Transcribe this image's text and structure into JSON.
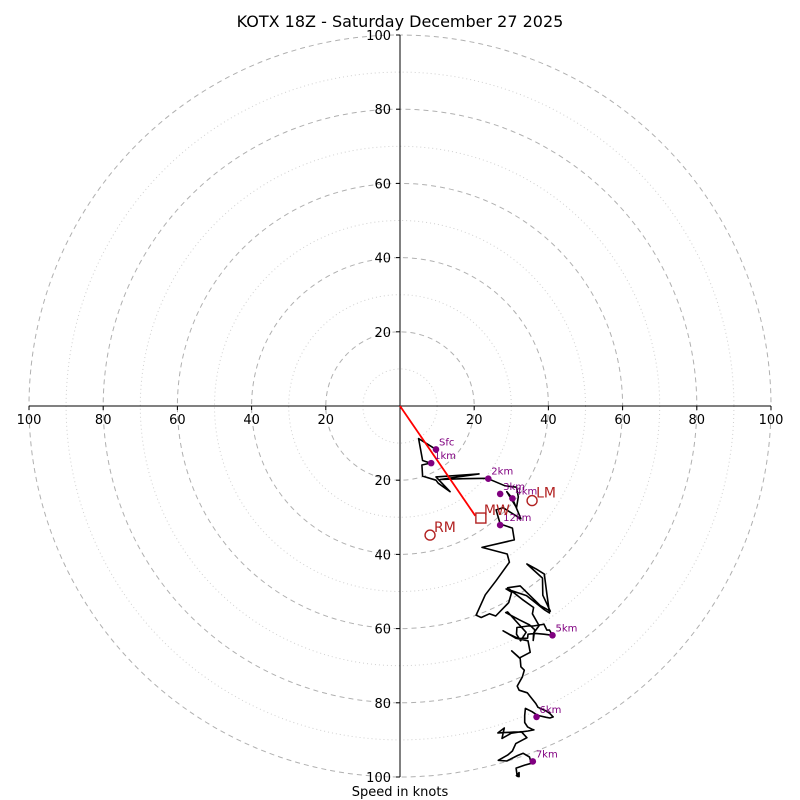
{
  "chart_data": {
    "type": "hodograph",
    "title": "KOTX 18Z - Saturday December 27 2025",
    "xlabel": "Speed in knots",
    "xlim": [
      -100,
      100
    ],
    "ylim": [
      -100,
      100
    ],
    "rings_major": [
      20,
      40,
      60,
      80,
      100
    ],
    "rings_minor": [
      10,
      30,
      50,
      70,
      90
    ],
    "x_ticks": [
      {
        "value": -100,
        "label": "100"
      },
      {
        "value": -80,
        "label": "80"
      },
      {
        "value": -60,
        "label": "60"
      },
      {
        "value": -40,
        "label": "40"
      },
      {
        "value": -20,
        "label": "20"
      },
      {
        "value": 20,
        "label": "20"
      },
      {
        "value": 40,
        "label": "40"
      },
      {
        "value": 60,
        "label": "60"
      },
      {
        "value": 80,
        "label": "80"
      },
      {
        "value": 100,
        "label": "100"
      }
    ],
    "y_ticks": [
      {
        "value": 100,
        "label": "100"
      },
      {
        "value": 80,
        "label": "80"
      },
      {
        "value": 60,
        "label": "60"
      },
      {
        "value": 40,
        "label": "40"
      },
      {
        "value": 20,
        "label": "20"
      },
      {
        "value": -20,
        "label": "20"
      },
      {
        "value": -40,
        "label": "40"
      },
      {
        "value": -60,
        "label": "60"
      },
      {
        "value": -80,
        "label": "80"
      },
      {
        "value": -100,
        "label": "100"
      }
    ],
    "trace": [
      [
        9.7,
        -11.7
      ],
      [
        5.0,
        -8.8
      ],
      [
        6.1,
        -14.7
      ],
      [
        8.2,
        -15.4
      ],
      [
        5.9,
        -15.9
      ],
      [
        6.1,
        -18.9
      ],
      [
        9.7,
        -20.0
      ],
      [
        10.3,
        -20.8
      ],
      [
        13.5,
        -23.1
      ],
      [
        9.7,
        -19.1
      ],
      [
        21.3,
        -18.3
      ],
      [
        10.8,
        -19.8
      ],
      [
        17.0,
        -19.6
      ],
      [
        23.5,
        -19.5
      ],
      [
        28.3,
        -21.5
      ],
      [
        31.4,
        -21.9
      ],
      [
        31.9,
        -24.5
      ],
      [
        31.4,
        -27.4
      ],
      [
        28.8,
        -23.1
      ],
      [
        30.3,
        -24.9
      ],
      [
        32.6,
        -30.4
      ],
      [
        27.8,
        -27.4
      ],
      [
        25.9,
        -28.0
      ],
      [
        27.0,
        -31.8
      ],
      [
        30.3,
        -32.9
      ],
      [
        30.8,
        -36.1
      ],
      [
        22.1,
        -38.1
      ],
      [
        28.9,
        -39.9
      ],
      [
        29.5,
        -42.1
      ],
      [
        25.9,
        -47.1
      ],
      [
        23.0,
        -50.9
      ],
      [
        20.5,
        -56.4
      ],
      [
        21.9,
        -57.0
      ],
      [
        24.1,
        -56.0
      ],
      [
        25.8,
        -56.6
      ],
      [
        29.3,
        -53.0
      ],
      [
        30.1,
        -50.2
      ],
      [
        28.6,
        -49.3
      ],
      [
        34.1,
        -51.1
      ],
      [
        39.0,
        -55.0
      ],
      [
        40.3,
        -55.8
      ],
      [
        39.6,
        -50.7
      ],
      [
        38.9,
        -45.3
      ],
      [
        36.8,
        -44.0
      ],
      [
        34.2,
        -42.6
      ],
      [
        38.4,
        -46.4
      ],
      [
        38.5,
        -51.0
      ],
      [
        40.5,
        -55.3
      ],
      [
        37.8,
        -53.8
      ],
      [
        32.4,
        -48.5
      ],
      [
        29.0,
        -49.0
      ],
      [
        32.9,
        -52.1
      ],
      [
        36.0,
        -54.3
      ],
      [
        35.7,
        -56.0
      ],
      [
        37.5,
        -59.2
      ],
      [
        36.0,
        -61.2
      ],
      [
        35.9,
        -63.2
      ],
      [
        36.3,
        -60.3
      ],
      [
        34.9,
        -59.0
      ],
      [
        32.1,
        -57.6
      ],
      [
        28.5,
        -55.7
      ],
      [
        29.0,
        -55.5
      ],
      [
        34.0,
        -61.0
      ],
      [
        32.5,
        -63.3
      ],
      [
        31.4,
        -61.5
      ],
      [
        31.5,
        -59.7
      ],
      [
        34.5,
        -59.3
      ],
      [
        35.9,
        -59.3
      ],
      [
        38.4,
        -58.9
      ],
      [
        38.8,
        -58.8
      ],
      [
        39.6,
        -60.4
      ],
      [
        40.3,
        -60.4
      ],
      [
        41.1,
        -61.8
      ],
      [
        38.8,
        -61.5
      ],
      [
        36.5,
        -61.3
      ],
      [
        34.5,
        -61.5
      ],
      [
        34.4,
        -62.6
      ],
      [
        32.0,
        -62.7
      ],
      [
        29.8,
        -61.7
      ],
      [
        27.8,
        -60.6
      ],
      [
        31.2,
        -62.6
      ],
      [
        34.5,
        -63.3
      ],
      [
        35.1,
        -66.4
      ],
      [
        32.2,
        -67.9
      ],
      [
        31.7,
        -67.4
      ],
      [
        30.1,
        -66.0
      ],
      [
        32.4,
        -68.1
      ],
      [
        32.6,
        -70.3
      ],
      [
        33.5,
        -71.2
      ],
      [
        33.0,
        -73.0
      ],
      [
        31.6,
        -75.5
      ],
      [
        32.1,
        -76.6
      ],
      [
        34.3,
        -77.3
      ],
      [
        35.1,
        -78.3
      ],
      [
        36.6,
        -80.2
      ],
      [
        37.2,
        -81.2
      ],
      [
        39.4,
        -82.2
      ],
      [
        40.3,
        -82.8
      ],
      [
        41.3,
        -83.8
      ],
      [
        40.4,
        -84.1
      ],
      [
        39.4,
        -83.9
      ],
      [
        37.1,
        -83.4
      ],
      [
        35.6,
        -82.4
      ],
      [
        33.8,
        -81.5
      ],
      [
        33.6,
        -83.4
      ],
      [
        33.6,
        -85.3
      ],
      [
        34.4,
        -86.5
      ],
      [
        35.5,
        -87.1
      ],
      [
        36.1,
        -87.3
      ],
      [
        34.5,
        -87.6
      ],
      [
        32.4,
        -87.9
      ],
      [
        30.7,
        -87.9
      ],
      [
        26.4,
        -88.1
      ],
      [
        28.1,
        -86.8
      ],
      [
        27.5,
        -89.6
      ],
      [
        30.0,
        -88.2
      ],
      [
        32.7,
        -87.8
      ],
      [
        34.2,
        -89.4
      ],
      [
        31.2,
        -91.0
      ],
      [
        30.3,
        -93.0
      ],
      [
        29.0,
        -94.1
      ],
      [
        26.5,
        -95.5
      ],
      [
        28.8,
        -95.7
      ],
      [
        31.7,
        -94.2
      ],
      [
        33.2,
        -93.6
      ],
      [
        34.9,
        -94.6
      ],
      [
        35.4,
        -96.3
      ],
      [
        33.6,
        -96.8
      ],
      [
        31.3,
        -97.6
      ],
      [
        31.6,
        -99.8
      ],
      [
        32.0,
        -99.6
      ],
      [
        32.0,
        -99.9
      ],
      [
        31.4,
        -99.6
      ],
      [
        31.7,
        -99.8
      ],
      [
        32.1,
        -99.9
      ],
      [
        32.1,
        -98.8
      ],
      [
        31.3,
        -99.8
      ]
    ],
    "height_markers": [
      {
        "label": "Sfc",
        "u": 9.7,
        "v": -11.7
      },
      {
        "label": "1km",
        "u": 8.4,
        "v": -15.4
      },
      {
        "label": "2km",
        "u": 23.8,
        "v": -19.6
      },
      {
        "label": "3km",
        "u": 27.0,
        "v": -23.7
      },
      {
        "label": "4km",
        "u": 30.3,
        "v": -24.9
      },
      {
        "label": "12km",
        "u": 27.0,
        "v": -32.1
      },
      {
        "label": "5km",
        "u": 41.1,
        "v": -61.8
      },
      {
        "label": "6km",
        "u": 36.8,
        "v": -83.8
      },
      {
        "label": "7km",
        "u": 35.8,
        "v": -95.8
      }
    ],
    "mean_wind": {
      "label": "MW",
      "u": 21.8,
      "v": -30.2
    },
    "bunkers_lm": {
      "label": "LM",
      "u": 35.6,
      "v": -25.5
    },
    "bunkers_rm": {
      "label": "RM",
      "u": 8.1,
      "v": -34.8
    },
    "shear_vector": {
      "from": [
        0,
        0
      ],
      "to": [
        20.3,
        -29.6
      ]
    },
    "colors": {
      "trace": "#000000",
      "markers": "#800080",
      "motion": "#b22222",
      "shear": "#ff0000",
      "grid": "#b0b0b0",
      "grid_minor": "#d0d0d0"
    }
  }
}
